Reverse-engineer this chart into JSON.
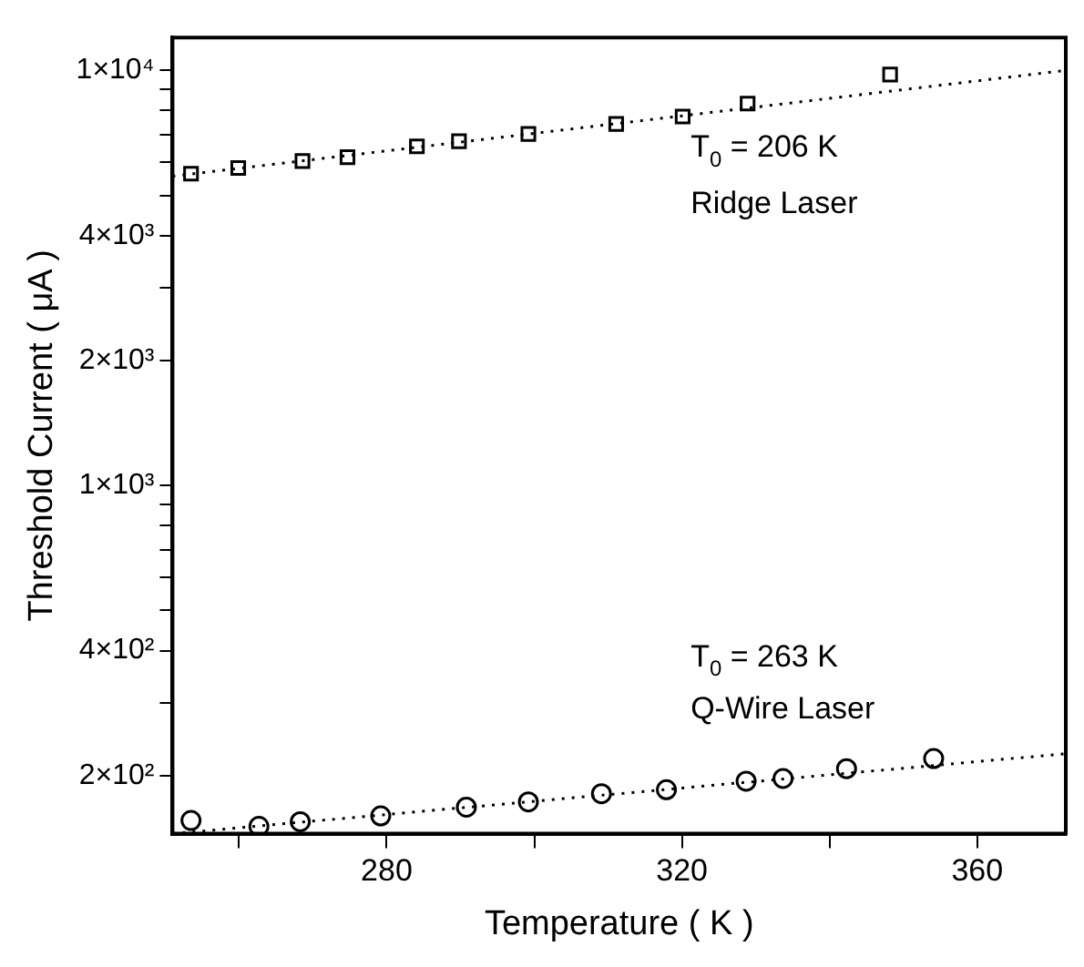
{
  "chart_data": {
    "type": "scatter",
    "xlabel": "Temperature ( K )",
    "ylabel": "Threshold Current ( μA )",
    "log": "y",
    "grid": false,
    "legend": false,
    "xlim": [
      251,
      372
    ],
    "xticks": [
      {
        "value": 260,
        "label": null
      },
      280,
      {
        "value": 300,
        "label": null
      },
      320,
      {
        "value": 340,
        "label": null
      },
      360
    ],
    "ylim": [
      145,
      12000
    ],
    "yticks": [
      {
        "value": 200,
        "label": "2×10²"
      },
      {
        "value": 300,
        "label": null
      },
      {
        "value": 400,
        "label": "4×10²"
      },
      {
        "value": 500,
        "label": null
      },
      {
        "value": 600,
        "label": null
      },
      {
        "value": 700,
        "label": null
      },
      {
        "value": 800,
        "label": null
      },
      {
        "value": 900,
        "label": null
      },
      {
        "value": 1000,
        "label": "1×10³"
      },
      {
        "value": 2000,
        "label": "2×10³"
      },
      {
        "value": 3000,
        "label": null
      },
      {
        "value": 4000,
        "label": "4×10³"
      },
      {
        "value": 5000,
        "label": null
      },
      {
        "value": 6000,
        "label": null
      },
      {
        "value": 7000,
        "label": null
      },
      {
        "value": 8000,
        "label": null
      },
      {
        "value": 9000,
        "label": null
      },
      {
        "value": 10000,
        "label": "1×10⁴"
      }
    ],
    "annotations": [
      "T$_{0}$ = 206 K",
      "T$_{0}$ = 263 K"
    ],
    "series": [
      {
        "name": "Ridge Laser",
        "marker": "square",
        "color": "#000000",
        "x": [
          253.5,
          259.9,
          268.6,
          274.7,
          284.1,
          289.8,
          299.2,
          311.1,
          320.1,
          328.9,
          348.2
        ],
        "values": [
          5640,
          5820,
          6050,
          6180,
          6560,
          6750,
          7030,
          7430,
          7740,
          8320,
          9770
        ]
      },
      {
        "type": "line",
        "marker": "none",
        "line_style": "dotted",
        "color": "#000000",
        "x": [
          251,
          372
        ],
        "values": [
          5560,
          10000
        ]
      },
      {
        "name": "Q-Wire Laser",
        "marker": "circle",
        "color": "#000000",
        "x": [
          253.5,
          262.7,
          268.3,
          279.2,
          290.8,
          299.2,
          309.1,
          317.9,
          328.7,
          333.7,
          342.3,
          354.1
        ],
        "values": [
          156,
          151,
          155,
          160,
          168,
          173,
          181,
          185,
          194,
          197,
          208,
          220
        ]
      },
      {
        "type": "line",
        "marker": "none",
        "line_style": "dotted",
        "color": "#000000",
        "x": [
          251,
          372
        ],
        "values": [
          145,
          226
        ]
      }
    ]
  }
}
